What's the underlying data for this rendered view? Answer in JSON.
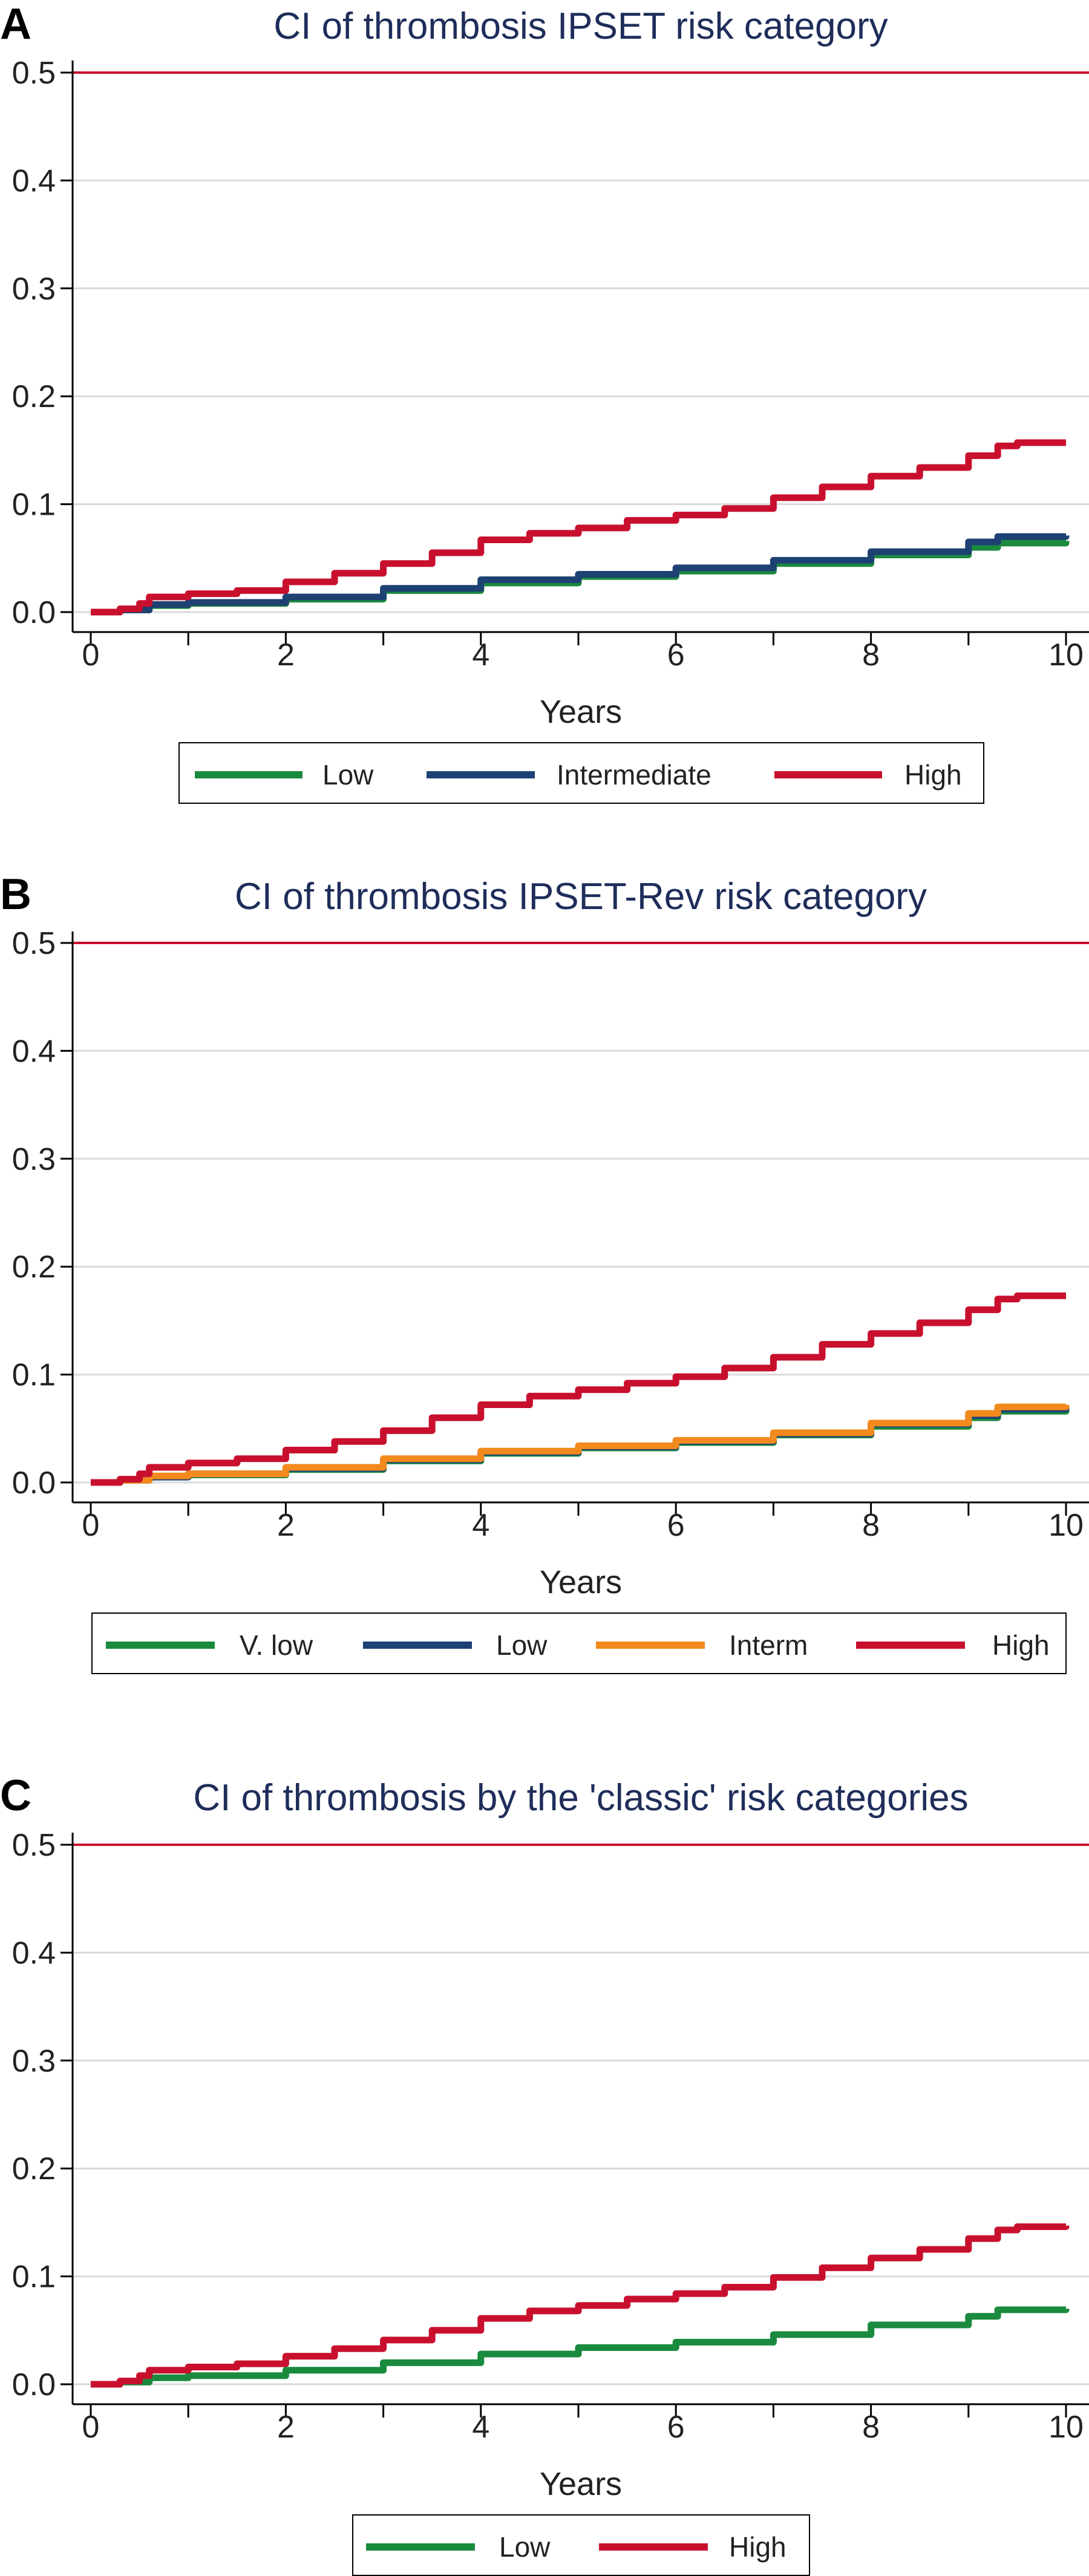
{
  "chart_data": [
    {
      "type": "line",
      "panel": "A",
      "title": "CI of thrombosis IPSET risk category",
      "xlabel": "Years",
      "ylabel": "",
      "xlim": [
        0,
        10
      ],
      "ylim": [
        0,
        0.5
      ],
      "xticks": [
        "0",
        "2",
        "4",
        "6",
        "8",
        "10"
      ],
      "yticks": [
        "0.0",
        "0.1",
        "0.2",
        "0.3",
        "0.4",
        "0.5"
      ],
      "grid": true,
      "reference_line": {
        "y": 0.5,
        "color": "#c8102e"
      },
      "legend_position": "bottom",
      "series": [
        {
          "name": "Low",
          "color": "#1a8a3e",
          "x": [
            0,
            0.3,
            0.6,
            1,
            2,
            3,
            4,
            5,
            6,
            7,
            8,
            9,
            9.3,
            10
          ],
          "y": [
            0,
            0.002,
            0.006,
            0.008,
            0.012,
            0.02,
            0.027,
            0.033,
            0.038,
            0.045,
            0.053,
            0.06,
            0.064,
            0.066
          ]
        },
        {
          "name": "Intermediate",
          "color": "#1d4173",
          "x": [
            0,
            0.3,
            0.6,
            1,
            2,
            3,
            4,
            5,
            6,
            7,
            8,
            9,
            9.3,
            10
          ],
          "y": [
            0,
            0.002,
            0.007,
            0.009,
            0.014,
            0.022,
            0.03,
            0.035,
            0.041,
            0.048,
            0.056,
            0.065,
            0.07,
            0.071
          ]
        },
        {
          "name": "High",
          "color": "#c8102e",
          "x": [
            0,
            0.3,
            0.5,
            0.6,
            1,
            1.5,
            2,
            2.5,
            3,
            3.5,
            4,
            4.5,
            5,
            5.5,
            6,
            6.5,
            7,
            7.5,
            8,
            8.5,
            9,
            9.3,
            9.5,
            10
          ],
          "y": [
            0,
            0.003,
            0.008,
            0.014,
            0.017,
            0.02,
            0.028,
            0.036,
            0.045,
            0.055,
            0.067,
            0.073,
            0.078,
            0.085,
            0.09,
            0.096,
            0.106,
            0.116,
            0.126,
            0.134,
            0.145,
            0.154,
            0.157,
            0.157
          ]
        }
      ]
    },
    {
      "type": "line",
      "panel": "B",
      "title": "CI of thrombosis IPSET-Rev risk category",
      "xlabel": "Years",
      "ylabel": "",
      "xlim": [
        0,
        10
      ],
      "ylim": [
        0,
        0.5
      ],
      "xticks": [
        "0",
        "2",
        "4",
        "6",
        "8",
        "10"
      ],
      "yticks": [
        "0.0",
        "0.1",
        "0.2",
        "0.3",
        "0.4",
        "0.5"
      ],
      "grid": true,
      "reference_line": {
        "y": 0.5,
        "color": "#c8102e"
      },
      "legend_position": "bottom",
      "series": [
        {
          "name": "V. low",
          "color": "#1a8a3e",
          "x": [
            0,
            0.3,
            0.6,
            1,
            2,
            3,
            4,
            5,
            6,
            7,
            8,
            9,
            9.3,
            10
          ],
          "y": [
            0,
            0.002,
            0.005,
            0.007,
            0.012,
            0.02,
            0.027,
            0.032,
            0.037,
            0.044,
            0.052,
            0.06,
            0.066,
            0.068
          ]
        },
        {
          "name": "Low",
          "color": "#1d4173",
          "x": [
            0,
            0.3,
            0.6,
            1,
            2,
            3,
            4,
            5,
            6,
            7,
            8,
            9,
            9.3,
            10
          ],
          "y": [
            0,
            0.002,
            0.005,
            0.008,
            0.013,
            0.021,
            0.028,
            0.033,
            0.038,
            0.045,
            0.054,
            0.062,
            0.068,
            0.07
          ]
        },
        {
          "name": "Interm",
          "color": "#f28a1e",
          "x": [
            0,
            0.3,
            0.6,
            1,
            2,
            3,
            4,
            5,
            6,
            7,
            8,
            9,
            9.3,
            10
          ],
          "y": [
            0,
            0.002,
            0.006,
            0.008,
            0.014,
            0.022,
            0.029,
            0.034,
            0.039,
            0.046,
            0.055,
            0.064,
            0.07,
            0.072
          ]
        },
        {
          "name": "High",
          "color": "#c8102e",
          "x": [
            0,
            0.3,
            0.5,
            0.6,
            1,
            1.5,
            2,
            2.5,
            3,
            3.5,
            4,
            4.5,
            5,
            5.5,
            6,
            6.5,
            7,
            7.5,
            8,
            8.5,
            9,
            9.3,
            9.5,
            10
          ],
          "y": [
            0,
            0.003,
            0.008,
            0.014,
            0.018,
            0.022,
            0.03,
            0.038,
            0.048,
            0.06,
            0.072,
            0.08,
            0.086,
            0.092,
            0.098,
            0.106,
            0.116,
            0.128,
            0.138,
            0.148,
            0.16,
            0.17,
            0.173,
            0.173
          ]
        }
      ]
    },
    {
      "type": "line",
      "panel": "C",
      "title": "CI of thrombosis by the 'classic' risk categories",
      "xlabel": "Years",
      "ylabel": "",
      "xlim": [
        0,
        10
      ],
      "ylim": [
        0,
        0.5
      ],
      "xticks": [
        "0",
        "2",
        "4",
        "6",
        "8",
        "10"
      ],
      "yticks": [
        "0.0",
        "0.1",
        "0.2",
        "0.3",
        "0.4",
        "0.5"
      ],
      "grid": true,
      "reference_line": {
        "y": 0.5,
        "color": "#c8102e"
      },
      "legend_position": "bottom",
      "series": [
        {
          "name": "Low",
          "color": "#1a8a3e",
          "x": [
            0,
            0.3,
            0.6,
            1,
            2,
            3,
            4,
            5,
            6,
            7,
            8,
            9,
            9.3,
            10
          ],
          "y": [
            0,
            0.002,
            0.006,
            0.008,
            0.013,
            0.02,
            0.028,
            0.034,
            0.039,
            0.046,
            0.055,
            0.063,
            0.069,
            0.07
          ]
        },
        {
          "name": "High",
          "color": "#c8102e",
          "x": [
            0,
            0.3,
            0.5,
            0.6,
            1,
            1.5,
            2,
            2.5,
            3,
            3.5,
            4,
            4.5,
            5,
            5.5,
            6,
            6.5,
            7,
            7.5,
            8,
            8.5,
            9,
            9.3,
            9.5,
            10
          ],
          "y": [
            0,
            0.003,
            0.008,
            0.013,
            0.016,
            0.019,
            0.026,
            0.033,
            0.041,
            0.05,
            0.061,
            0.068,
            0.073,
            0.079,
            0.084,
            0.09,
            0.099,
            0.108,
            0.117,
            0.125,
            0.135,
            0.143,
            0.146,
            0.147
          ]
        }
      ]
    }
  ]
}
